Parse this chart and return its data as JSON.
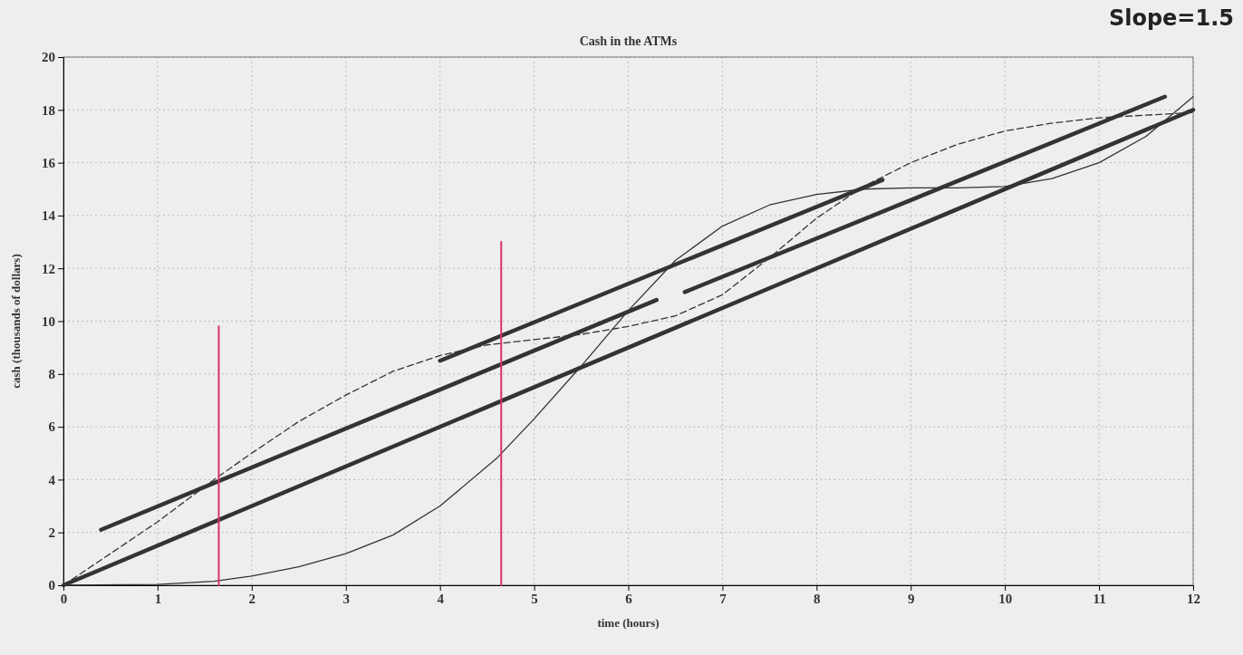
{
  "chart_data": {
    "type": "line",
    "title": "Cash  in the ATMs",
    "xlabel": "time (hours)",
    "ylabel": "cash (thousands of dollars)",
    "annotations": [
      "Slope=1.5"
    ],
    "xlim": [
      0,
      12
    ],
    "ylim": [
      0,
      20
    ],
    "xticks": [
      0,
      1,
      2,
      3,
      4,
      5,
      6,
      7,
      8,
      9,
      10,
      11,
      12
    ],
    "yticks": [
      0,
      2,
      4,
      6,
      8,
      10,
      12,
      14,
      16,
      18,
      20
    ],
    "grid": true,
    "marker": "none",
    "series": [
      {
        "color": "#333333",
        "line_style": "solid",
        "x": [
          0,
          1,
          1.6,
          2,
          2.5,
          3,
          3.5,
          4,
          4.6,
          5,
          5.5,
          6,
          6.5,
          7,
          7.5,
          8,
          8.5,
          9,
          9.5,
          10,
          10.5,
          11,
          11.5,
          12
        ],
        "values": [
          0,
          0.03,
          0.15,
          0.35,
          0.7,
          1.2,
          1.9,
          3,
          4.8,
          6.3,
          8.3,
          10.4,
          12.3,
          13.6,
          14.4,
          14.8,
          15,
          15.05,
          15.05,
          15.1,
          15.4,
          16,
          17,
          18.5
        ]
      },
      {
        "color": "#333333",
        "line_style": "dashed",
        "x": [
          0,
          0.5,
          1,
          1.6,
          2,
          2.5,
          3,
          3.5,
          4,
          4.5,
          5,
          5.5,
          6,
          6.5,
          7,
          7.5,
          8,
          8.5,
          9,
          9.5,
          10,
          10.5,
          11,
          11.5,
          12
        ],
        "values": [
          0,
          1.2,
          2.4,
          4,
          5,
          6.2,
          7.2,
          8.1,
          8.7,
          9.1,
          9.3,
          9.5,
          9.8,
          10.2,
          11,
          12.4,
          13.9,
          15.1,
          16,
          16.7,
          17.2,
          17.5,
          17.7,
          17.8,
          17.9
        ]
      },
      {
        "color": "#333333",
        "line_style": "solid",
        "x": [
          0,
          12
        ],
        "values": [
          0,
          18
        ]
      },
      {
        "color": "#333333",
        "line_style": "solid",
        "x": [
          0.4,
          6.3
        ],
        "values": [
          2.1,
          10.8
        ]
      },
      {
        "color": "#333333",
        "line_style": "solid",
        "x": [
          4,
          8.7
        ],
        "values": [
          8.5,
          15.35
        ]
      },
      {
        "color": "#333333",
        "line_style": "solid",
        "x": [
          6.6,
          11.7
        ],
        "values": [
          11.1,
          18.5
        ]
      },
      {
        "color": "#d6336c",
        "line_style": "solid",
        "x": [
          1.65,
          1.65
        ],
        "values": [
          0,
          9.8
        ]
      },
      {
        "color": "#d6336c",
        "line_style": "solid",
        "x": [
          4.65,
          4.65
        ],
        "values": [
          0,
          13
        ]
      }
    ]
  }
}
